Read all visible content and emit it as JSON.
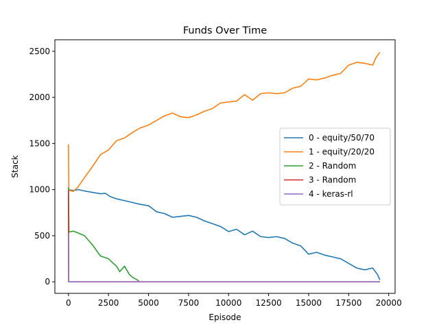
{
  "chart_data": {
    "type": "line",
    "title": "Funds Over Time",
    "xlabel": "Episode",
    "ylabel": "Stack",
    "xlim": [
      -850,
      20400
    ],
    "ylim": [
      -125,
      2625
    ],
    "x_ticks": [
      0,
      2500,
      5000,
      7500,
      10000,
      12500,
      15000,
      17500,
      20000
    ],
    "y_ticks": [
      0,
      500,
      1000,
      1500,
      2000,
      2500
    ],
    "grid": false,
    "legend_position": "center-right",
    "series": [
      {
        "name": "0 - equity/50/70",
        "color": "#1f77b4",
        "points": [
          [
            0,
            1000
          ],
          [
            300,
            990
          ],
          [
            600,
            1000
          ],
          [
            1000,
            985
          ],
          [
            1500,
            970
          ],
          [
            2000,
            955
          ],
          [
            2300,
            960
          ],
          [
            2600,
            925
          ],
          [
            3000,
            900
          ],
          [
            3500,
            880
          ],
          [
            4000,
            860
          ],
          [
            4500,
            840
          ],
          [
            5000,
            825
          ],
          [
            5200,
            800
          ],
          [
            5500,
            760
          ],
          [
            6000,
            740
          ],
          [
            6500,
            700
          ],
          [
            7000,
            710
          ],
          [
            7500,
            720
          ],
          [
            8000,
            700
          ],
          [
            8500,
            660
          ],
          [
            9000,
            630
          ],
          [
            9500,
            600
          ],
          [
            10000,
            545
          ],
          [
            10500,
            570
          ],
          [
            11000,
            510
          ],
          [
            11500,
            550
          ],
          [
            12000,
            490
          ],
          [
            12500,
            480
          ],
          [
            13000,
            490
          ],
          [
            13500,
            470
          ],
          [
            14000,
            420
          ],
          [
            14500,
            390
          ],
          [
            15000,
            300
          ],
          [
            15500,
            320
          ],
          [
            16000,
            290
          ],
          [
            16500,
            270
          ],
          [
            17000,
            250
          ],
          [
            17500,
            200
          ],
          [
            18000,
            150
          ],
          [
            18500,
            130
          ],
          [
            19000,
            150
          ],
          [
            19300,
            80
          ],
          [
            19450,
            20
          ]
        ]
      },
      {
        "name": "1 - equity/20/20",
        "color": "#ff7f0e",
        "points": [
          [
            0,
            1490
          ],
          [
            20,
            1000
          ],
          [
            100,
            990
          ],
          [
            300,
            980
          ],
          [
            600,
            1030
          ],
          [
            1000,
            1130
          ],
          [
            1500,
            1250
          ],
          [
            2000,
            1380
          ],
          [
            2500,
            1430
          ],
          [
            3000,
            1530
          ],
          [
            3500,
            1560
          ],
          [
            4000,
            1620
          ],
          [
            4500,
            1670
          ],
          [
            5000,
            1700
          ],
          [
            5500,
            1750
          ],
          [
            6000,
            1800
          ],
          [
            6500,
            1830
          ],
          [
            7000,
            1790
          ],
          [
            7500,
            1780
          ],
          [
            8000,
            1810
          ],
          [
            8500,
            1850
          ],
          [
            9000,
            1880
          ],
          [
            9500,
            1940
          ],
          [
            10000,
            1950
          ],
          [
            10500,
            1960
          ],
          [
            11000,
            2030
          ],
          [
            11500,
            1970
          ],
          [
            12000,
            2040
          ],
          [
            12500,
            2050
          ],
          [
            13000,
            2040
          ],
          [
            13500,
            2050
          ],
          [
            14000,
            2100
          ],
          [
            14500,
            2120
          ],
          [
            15000,
            2200
          ],
          [
            15500,
            2190
          ],
          [
            16000,
            2210
          ],
          [
            16500,
            2240
          ],
          [
            17000,
            2260
          ],
          [
            17500,
            2350
          ],
          [
            18000,
            2380
          ],
          [
            18500,
            2370
          ],
          [
            19000,
            2350
          ],
          [
            19200,
            2430
          ],
          [
            19450,
            2490
          ]
        ]
      },
      {
        "name": "2 - Random",
        "color": "#2ca02c",
        "points": [
          [
            0,
            1020
          ],
          [
            30,
            540
          ],
          [
            300,
            550
          ],
          [
            600,
            530
          ],
          [
            1000,
            500
          ],
          [
            1500,
            400
          ],
          [
            2000,
            280
          ],
          [
            2500,
            250
          ],
          [
            2800,
            200
          ],
          [
            3000,
            170
          ],
          [
            3200,
            110
          ],
          [
            3500,
            170
          ],
          [
            3800,
            80
          ],
          [
            4000,
            50
          ],
          [
            4300,
            20
          ],
          [
            4400,
            10
          ]
        ]
      },
      {
        "name": "3 - Random",
        "color": "#d62728",
        "points": [
          [
            0,
            990
          ],
          [
            10,
            0
          ],
          [
            19450,
            0
          ]
        ]
      },
      {
        "name": "4 - keras-rl",
        "color": "#9467bd",
        "points": [
          [
            0,
            520
          ],
          [
            15,
            0
          ],
          [
            19450,
            0
          ]
        ]
      }
    ]
  }
}
